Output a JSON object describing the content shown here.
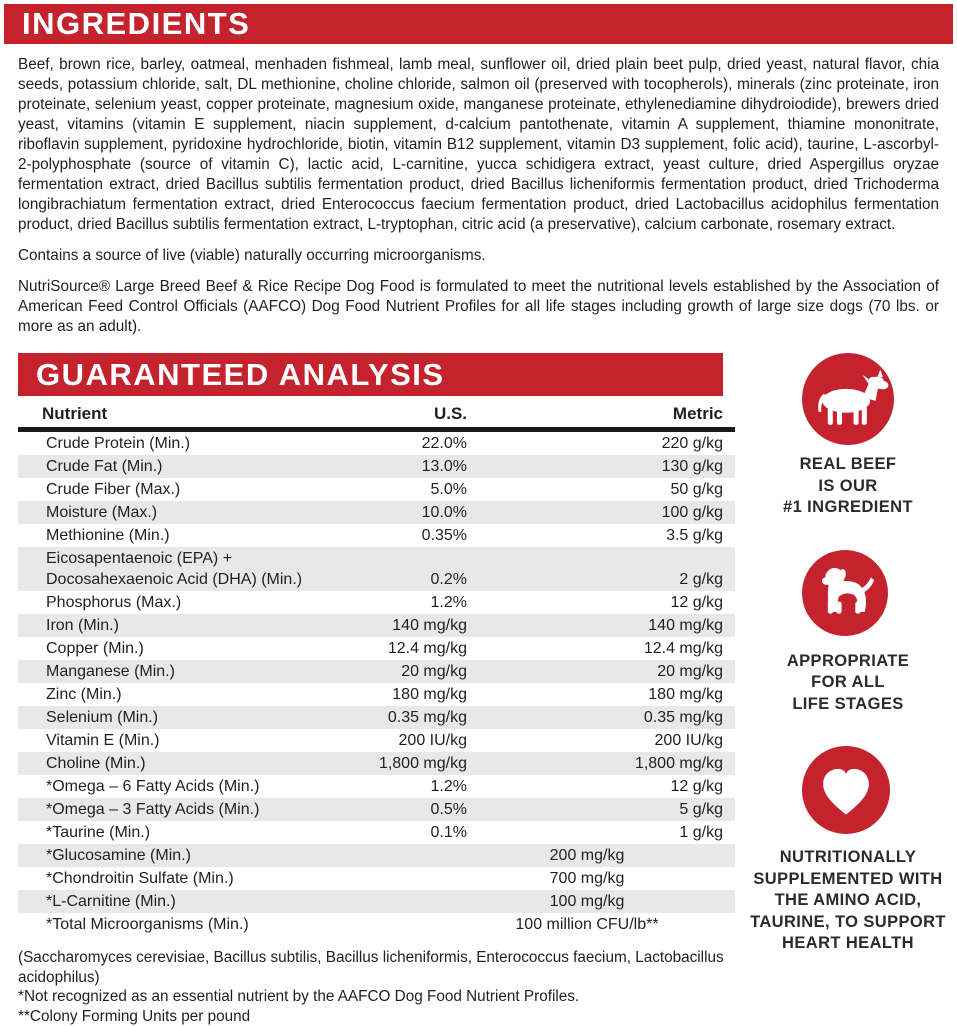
{
  "colors": {
    "red": "#c4232e",
    "stripe": "#e8e8e8",
    "text": "#231f20"
  },
  "ingredients": {
    "title": "INGREDIENTS",
    "paragraph": "Beef, brown rice, barley, oatmeal, menhaden fishmeal, lamb meal, sunflower oil, dried plain beet pulp, dried yeast, natural flavor, chia seeds, potassium chloride, salt, DL methionine, choline chloride, salmon oil (preserved with tocopherols), minerals (zinc proteinate, iron proteinate, selenium yeast, copper proteinate, magnesium oxide, manganese proteinate, ethylenediamine dihydroiodide), brewers dried yeast, vitamins (vitamin E supplement, niacin supplement, d-calcium pantothenate, vitamin A supplement, thiamine mononitrate, riboflavin supplement, pyridoxine hydrochloride, biotin, vitamin B12 supplement, vitamin D3 supplement, folic acid), taurine, L-ascorbyl-2-polyphosphate (source of vitamin C), lactic acid, L-carnitine, yucca schidigera extract, yeast culture, dried Aspergillus oryzae fermentation extract, dried Bacillus subtilis fermentation product, dried Bacillus licheniformis fermentation product, dried Trichoderma longibrachiatum fermentation extract, dried Enterococcus faecium fermentation product, dried Lactobacillus acidophilus fermentation product, dried Bacillus subtilis fermentation extract, L-tryptophan, citric acid (a preservative), calcium carbonate, rosemary extract.",
    "contains_note": "Contains a source of live (viable) naturally occurring microorganisms.",
    "formulation_note": "NutriSource® Large Breed Beef & Rice Recipe Dog Food is formulated to meet the nutritional levels established by the Association of American Feed Control Officials (AAFCO) Dog Food Nutrient Profiles for all life stages including growth of large size dogs (70 lbs. or more as an adult)."
  },
  "analysis": {
    "title": "GUARANTEED ANALYSIS",
    "columns": {
      "nutrient": "Nutrient",
      "us": "U.S.",
      "metric": "Metric"
    },
    "rows": [
      {
        "nutrient": "Crude Protein (Min.)",
        "us": "22.0%",
        "metric": "220 g/kg"
      },
      {
        "nutrient": "Crude Fat (Min.)",
        "us": "13.0%",
        "metric": "130 g/kg"
      },
      {
        "nutrient": "Crude Fiber (Max.)",
        "us": "5.0%",
        "metric": "50 g/kg"
      },
      {
        "nutrient": "Moisture (Max.)",
        "us": "10.0%",
        "metric": "100 g/kg"
      },
      {
        "nutrient": "Methionine (Min.)",
        "us": "0.35%",
        "metric": "3.5 g/kg"
      },
      {
        "nutrient": "Eicosapentaenoic (EPA) +\nDocosahexaenoic Acid (DHA) (Min.)",
        "us": "0.2%",
        "metric": "2 g/kg"
      },
      {
        "nutrient": "Phosphorus (Max.)",
        "us": "1.2%",
        "metric": "12 g/kg"
      },
      {
        "nutrient": "Iron (Min.)",
        "us": "140 mg/kg",
        "metric": "140 mg/kg"
      },
      {
        "nutrient": "Copper (Min.)",
        "us": "12.4 mg/kg",
        "metric": "12.4 mg/kg"
      },
      {
        "nutrient": "Manganese (Min.)",
        "us": "20 mg/kg",
        "metric": "20 mg/kg"
      },
      {
        "nutrient": "Zinc (Min.)",
        "us": "180 mg/kg",
        "metric": "180 mg/kg"
      },
      {
        "nutrient": "Selenium (Min.)",
        "us": "0.35 mg/kg",
        "metric": "0.35 mg/kg"
      },
      {
        "nutrient": "Vitamin E (Min.)",
        "us": "200 IU/kg",
        "metric": "200 IU/kg"
      },
      {
        "nutrient": "Choline (Min.)",
        "us": "1,800 mg/kg",
        "metric": "1,800 mg/kg"
      },
      {
        "nutrient": "*Omega – 6 Fatty Acids (Min.)",
        "us": "1.2%",
        "metric": "12 g/kg"
      },
      {
        "nutrient": "*Omega – 3 Fatty Acids (Min.)",
        "us": "0.5%",
        "metric": "5 g/kg"
      },
      {
        "nutrient": "*Taurine (Min.)",
        "us": "0.1%",
        "metric": "1 g/kg"
      },
      {
        "nutrient": "*Glucosamine (Min.)",
        "combined": "200 mg/kg"
      },
      {
        "nutrient": "*Chondroitin Sulfate (Min.)",
        "combined": "700 mg/kg"
      },
      {
        "nutrient": "*L-Carnitine (Min.)",
        "combined": "100 mg/kg"
      },
      {
        "nutrient": "*Total Microorganisms (Min.)",
        "combined": "100 million CFU/lb**"
      }
    ],
    "footnotes": [
      "(Saccharomyces cerevisiae, Bacillus subtilis, Bacillus licheniformis, Enterococcus faecium, Lactobacillus acidophilus)",
      "*Not recognized as an essential nutrient by the AAFCO Dog Food Nutrient Profiles.",
      "**Colony Forming Units per pound"
    ]
  },
  "badges": [
    {
      "icon": "cow-icon",
      "lines": [
        "REAL BEEF",
        "IS OUR",
        "#1 INGREDIENT"
      ]
    },
    {
      "icon": "puppy-icon",
      "lines": [
        "APPROPRIATE",
        "FOR ALL",
        "LIFE STAGES"
      ]
    },
    {
      "icon": "heart-icon",
      "lines": [
        "NUTRITIONALLY",
        "SUPPLEMENTED WITH",
        "THE AMINO ACID,",
        "TAURINE, TO SUPPORT",
        "HEART HEALTH"
      ]
    }
  ]
}
